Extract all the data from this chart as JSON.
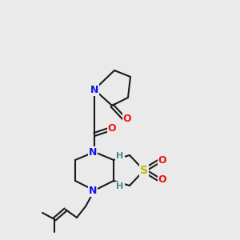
{
  "bg_color": "#eaeaea",
  "bond_color": "#1a1a1a",
  "bond_width": 1.5,
  "atom_colors": {
    "N": "#1010ee",
    "O": "#ee1010",
    "S": "#b8b800",
    "H": "#4a8a8a",
    "C": "#1a1a1a"
  }
}
